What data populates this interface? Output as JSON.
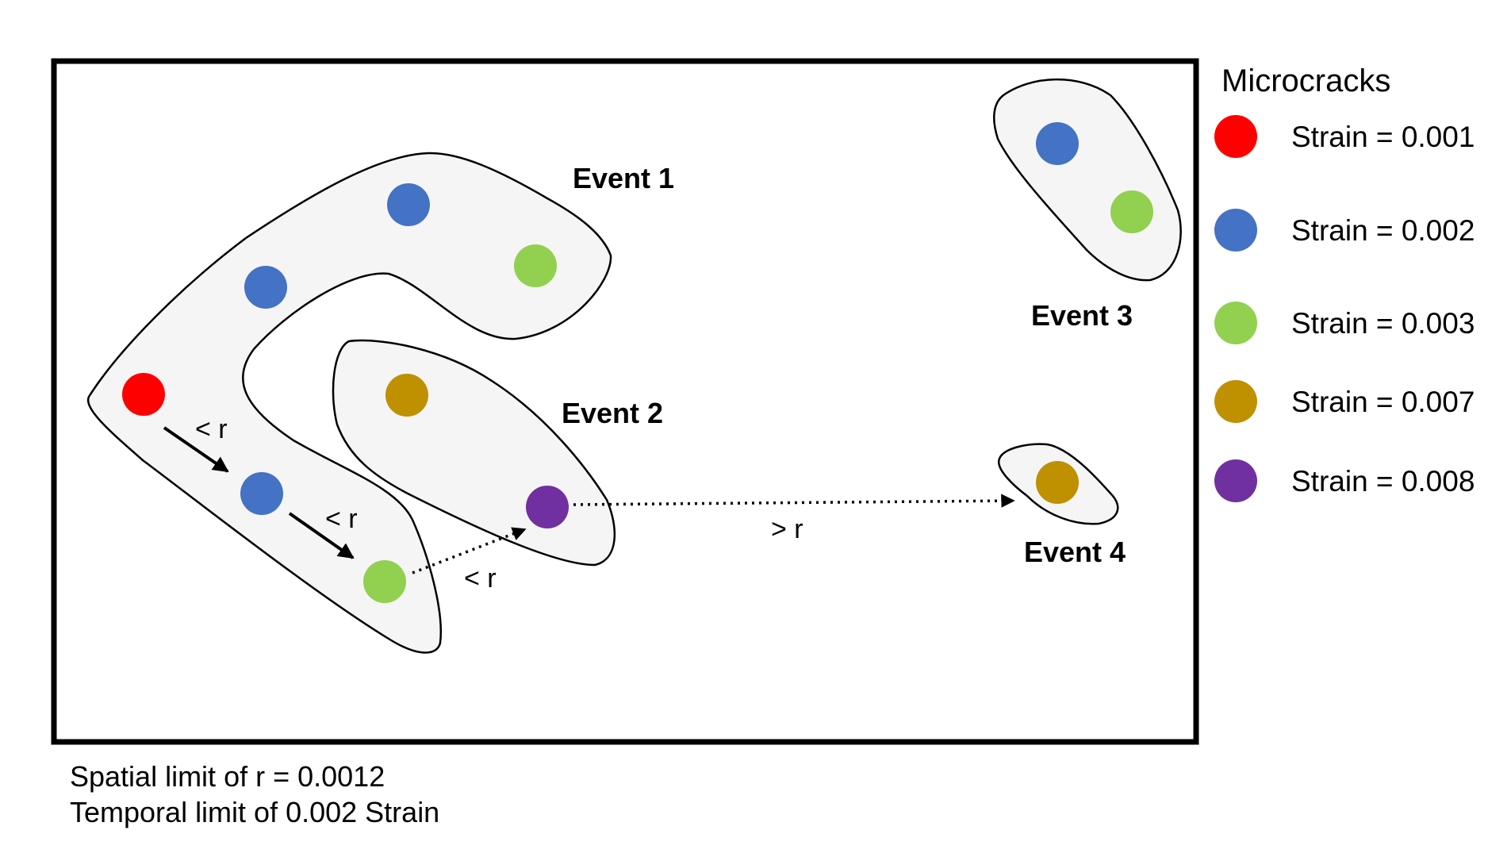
{
  "colors": {
    "strain_0_001": "#ff0000",
    "strain_0_002": "#4472c4",
    "strain_0_003": "#92d050",
    "strain_0_007": "#bf9000",
    "strain_0_008": "#7030a0",
    "region_fill": "#f5f5f5",
    "stroke": "#000000"
  },
  "events": {
    "event1": "Event 1",
    "event2": "Event 2",
    "event3": "Event 3",
    "event4": "Event 4"
  },
  "links": {
    "link1": "< r",
    "link2": "< r",
    "link3": "< r",
    "link4": "> r"
  },
  "legend": {
    "title": "Microcracks",
    "items": [
      {
        "label": "Strain = 0.001",
        "color": "#ff0000"
      },
      {
        "label": "Strain = 0.002",
        "color": "#4472c4"
      },
      {
        "label": "Strain = 0.003",
        "color": "#92d050"
      },
      {
        "label": "Strain = 0.007",
        "color": "#bf9000"
      },
      {
        "label": "Strain = 0.008",
        "color": "#7030a0"
      }
    ]
  },
  "notes": {
    "spatial": "Spatial limit of r = 0.0012",
    "temporal": "Temporal limit of 0.002 Strain"
  }
}
